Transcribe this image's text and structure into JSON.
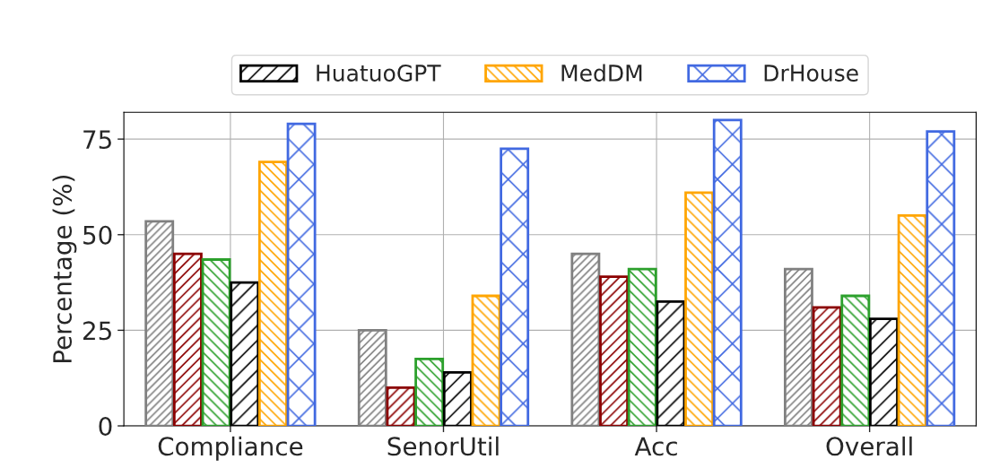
{
  "chart_data": {
    "type": "bar",
    "ylabel": "Percentage (%)",
    "categories": [
      "Compliance",
      "SenorUtil",
      "Acc",
      "Overall"
    ],
    "series": [
      {
        "color": "#808080",
        "values": [
          53.5,
          25,
          45,
          41
        ]
      },
      {
        "color": "#8b0000",
        "values": [
          45,
          10,
          39,
          31
        ]
      },
      {
        "color": "#2ca02c",
        "values": [
          43.5,
          17.5,
          41,
          34
        ]
      },
      {
        "name": "HuatuoGPT",
        "color": "#000000",
        "values": [
          37.5,
          14,
          32.5,
          28
        ]
      },
      {
        "name": "MedDM",
        "color": "#ffa500",
        "values": [
          69,
          34,
          61,
          55
        ]
      },
      {
        "name": "DrHouse",
        "color": "#4169e1",
        "values": [
          79,
          72.5,
          80,
          77
        ]
      }
    ],
    "ylim": [
      0,
      82
    ],
    "yticks": [
      0,
      25,
      50,
      75
    ],
    "grid": true,
    "legend": "top"
  }
}
